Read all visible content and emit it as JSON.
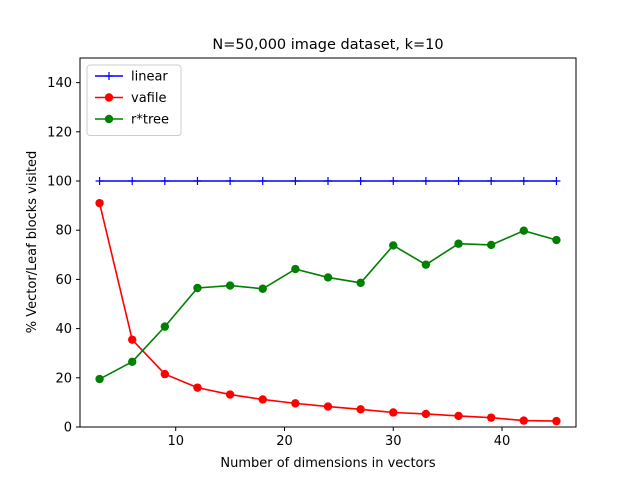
{
  "chart_data": {
    "type": "line",
    "title": "N=50,000 image dataset, k=10",
    "xlabel": "Number of dimensions in vectors",
    "ylabel": "% Vector/Leaf blocks visited",
    "xlim": [
      1.2,
      46.8
    ],
    "ylim": [
      0,
      150
    ],
    "xticks": [
      10,
      20,
      30,
      40
    ],
    "yticks": [
      0,
      20,
      40,
      60,
      80,
      100,
      120,
      140
    ],
    "x": [
      3,
      6,
      9,
      12,
      15,
      18,
      21,
      24,
      27,
      30,
      33,
      36,
      39,
      42,
      45
    ],
    "legend_position": "top-left",
    "grid": false,
    "series": [
      {
        "name": "linear",
        "color": "#0000ff",
        "marker": "plus",
        "values": [
          100,
          100,
          100,
          100,
          100,
          100,
          100,
          100,
          100,
          100,
          100,
          100,
          100,
          100,
          100
        ]
      },
      {
        "name": "vafile",
        "color": "#ff0000",
        "marker": "circle",
        "values": [
          91,
          35.5,
          21.5,
          16,
          13.2,
          11.2,
          9.6,
          8.3,
          7.2,
          5.9,
          5.3,
          4.5,
          3.8,
          2.6,
          2.4
        ]
      },
      {
        "name": "r*tree",
        "color": "#008000",
        "marker": "circle",
        "values": [
          19.5,
          26.5,
          40.8,
          56.5,
          57.5,
          56.2,
          64.2,
          60.8,
          58.6,
          73.8,
          66,
          74.5,
          74,
          79.8,
          76
        ]
      }
    ]
  }
}
